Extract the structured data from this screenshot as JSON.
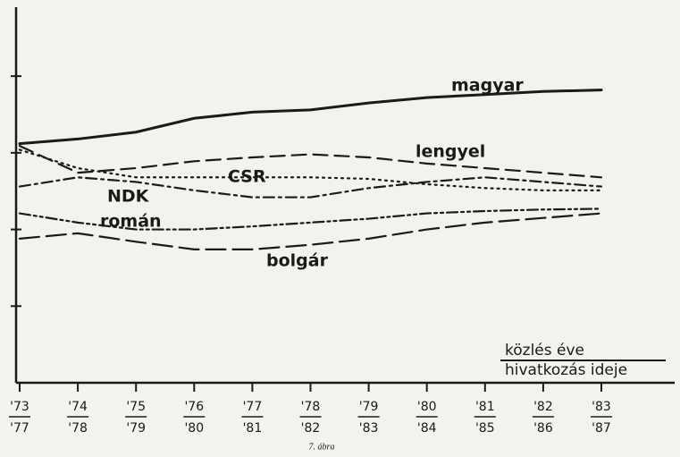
{
  "chart_data": {
    "type": "line",
    "categories": [
      [
        "'73",
        "'77"
      ],
      [
        "'74",
        "'78"
      ],
      [
        "'75",
        "'79"
      ],
      [
        "'76",
        "'80"
      ],
      [
        "'77",
        "'81"
      ],
      [
        "'78",
        "'82"
      ],
      [
        "'79",
        "'83"
      ],
      [
        "'80",
        "'84"
      ],
      [
        "'81",
        "'85"
      ],
      [
        "'82",
        "'86"
      ],
      [
        "'83",
        "'87"
      ]
    ],
    "ylim": [
      0,
      4.9
    ],
    "yticks": [
      1,
      2,
      3,
      4
    ],
    "series": [
      {
        "name": "magyar",
        "color": "#1a1a1a",
        "style": "solid",
        "values": [
          3.12,
          3.18,
          3.27,
          3.45,
          3.53,
          3.56,
          3.65,
          3.72,
          3.76,
          3.8,
          3.82
        ]
      },
      {
        "name": "lengyel",
        "color": "#1a1a1a",
        "style": "dashed",
        "values": [
          3.09,
          2.74,
          2.8,
          2.89,
          2.94,
          2.98,
          2.94,
          2.86,
          2.8,
          2.74,
          2.68
        ]
      },
      {
        "name": "CSR",
        "color": "#1a1a1a",
        "style": "dotted",
        "values": [
          3.04,
          2.8,
          2.68,
          2.68,
          2.68,
          2.68,
          2.66,
          2.59,
          2.54,
          2.51,
          2.51
        ]
      },
      {
        "name": "NDK",
        "color": "#1a1a1a",
        "style": "dashdot",
        "values": [
          2.56,
          2.68,
          2.62,
          2.51,
          2.42,
          2.42,
          2.54,
          2.62,
          2.68,
          2.62,
          2.56
        ]
      },
      {
        "name": "román",
        "color": "#1a1a1a",
        "style": "dashdotdot",
        "values": [
          2.21,
          2.09,
          2.0,
          2.0,
          2.04,
          2.09,
          2.14,
          2.21,
          2.24,
          2.26,
          2.27
        ]
      },
      {
        "name": "bolgár",
        "color": "#1a1a1a",
        "style": "longdash",
        "values": [
          1.88,
          1.95,
          1.84,
          1.74,
          1.74,
          1.8,
          1.88,
          2.0,
          2.09,
          2.15,
          2.21
        ]
      }
    ],
    "annotations": [
      "közlés éve",
      "hivatkozás ideje"
    ],
    "caption": "7. ábra"
  }
}
